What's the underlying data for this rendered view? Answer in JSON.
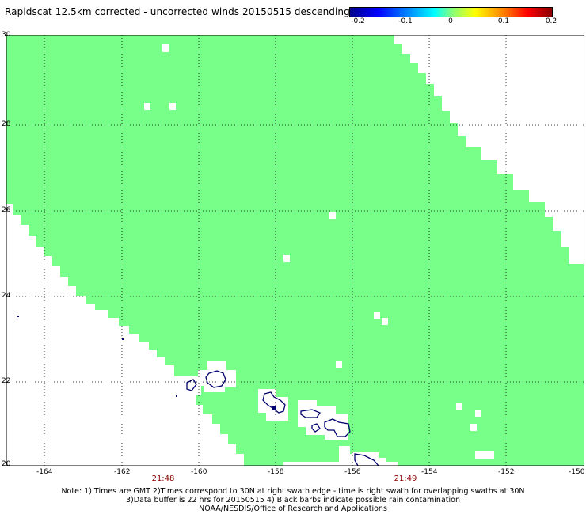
{
  "title": "Rapidscat 12.5km corrected - uncorrected winds 20150515 descending",
  "colorbar": {
    "labels": [
      "-0.2",
      "-0.1",
      "0",
      "0.1",
      "0.2"
    ]
  },
  "map": {
    "lat_labels": [
      "30",
      "28",
      "26",
      "24",
      "22",
      "20"
    ],
    "lon_labels": [
      "-164",
      "-162",
      "-160",
      "-158",
      "-156",
      "-154",
      "-152",
      "-150"
    ],
    "swath_color": "#78ff8a",
    "coast_color": "#00006e"
  },
  "time_labels": [
    "21:48",
    "21:49"
  ],
  "footer": {
    "line1": "Note: 1) Times are GMT 2)Times correspond to 30N at right swath edge - time is right swath for overlapping swaths at 30N",
    "line2": "3)Data buffer is 22 hrs for 20150515 4) Black barbs indicate possible rain contamination",
    "line3": "NOAA/NESDIS/Office of Research and Applications"
  }
}
